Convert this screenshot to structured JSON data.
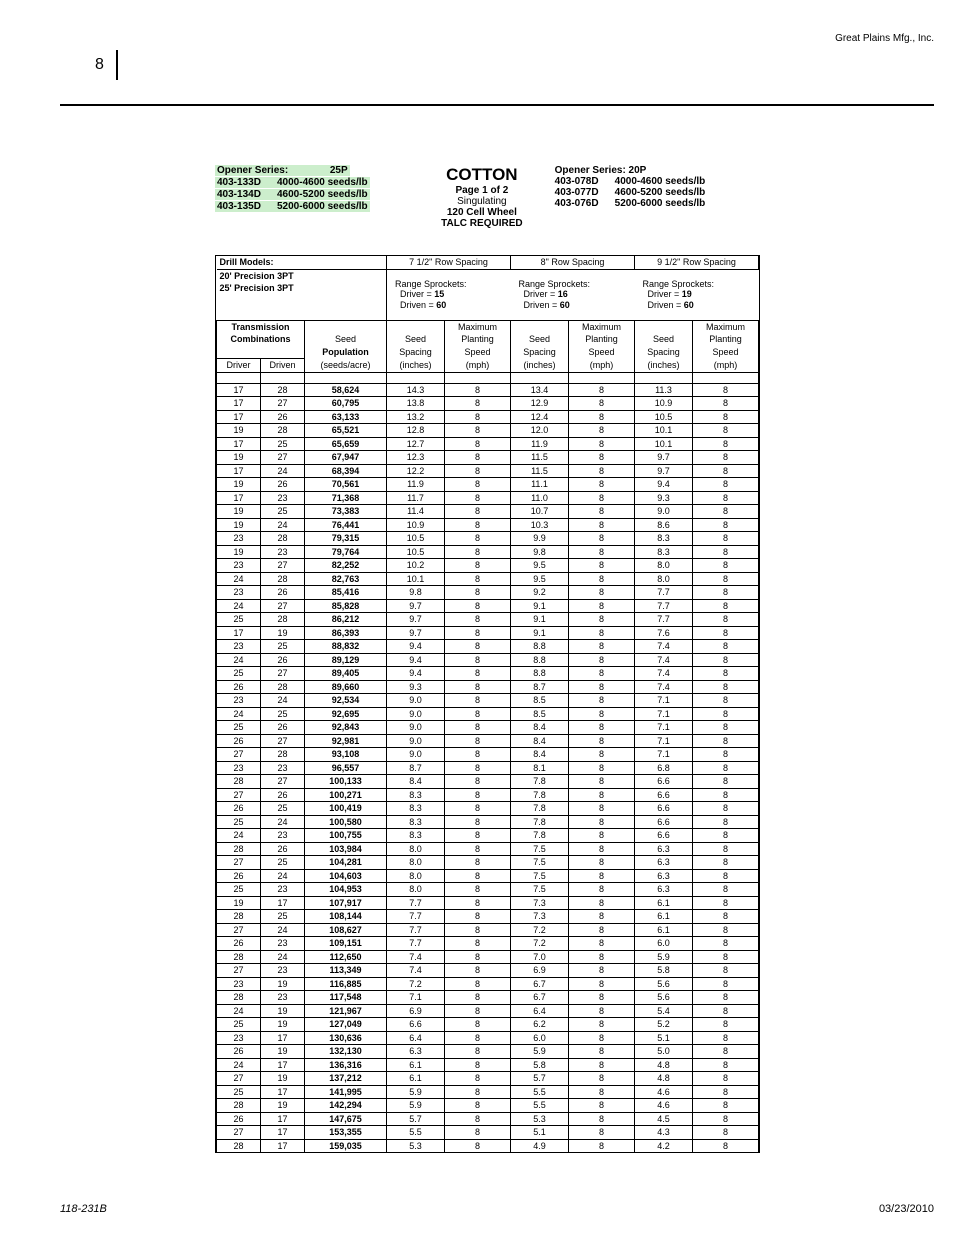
{
  "company": "Great Plains Mfg., Inc.",
  "page_num": "8",
  "footer_left": "118-231B",
  "footer_right": "03/23/2010",
  "header": {
    "left_title": "Opener Series:",
    "left_code": "25P",
    "left_rows": [
      {
        "code": "403-133D",
        "spec": "4000-4600 seeds/lb"
      },
      {
        "code": "403-134D",
        "spec": "4600-5200 seeds/lb"
      },
      {
        "code": "403-135D",
        "spec": "5200-6000 seeds/lb"
      }
    ],
    "center_title": "COTTON",
    "center_page": "Page 1 of 2",
    "center_l1": "Singulating",
    "center_l2": "120 Cell Wheel",
    "center_l3": "TALC REQUIRED",
    "right_title": "Opener Series:    20P",
    "right_rows": [
      {
        "code": "403-078D",
        "spec": "4000-4600 seeds/lb"
      },
      {
        "code": "403-077D",
        "spec": "4600-5200 seeds/lb"
      },
      {
        "code": "403-076D",
        "spec": "5200-6000 seeds/lb"
      }
    ]
  },
  "table": {
    "models_title": "Drill Models:",
    "models_l1": "20' Precision 3PT",
    "models_l2": "25' Precision 3PT",
    "spac1": "7 1/2\" Row Spacing",
    "spac2": "8\" Row Spacing",
    "spac3": "9 1/2\" Row Spacing",
    "sprock_lbl": "Range Sprockets:",
    "drv1": "Driver = 15",
    "drv2": "Driver = 16",
    "drv3": "Driver = 19",
    "drvn": "Driven = 60",
    "trans": "Transmission",
    "comb": "Combinations",
    "seed": "Seed",
    "pop": "Population",
    "spa": "(seeds/acre)",
    "ss": "Seed",
    "ss2": "Spacing",
    "ss3": "(inches)",
    "ms": "Maximum",
    "ms2": "Planting",
    "ms3": "Speed",
    "ms4": "(mph)",
    "driver": "Driver",
    "driven": "Driven",
    "rows": [
      [
        17,
        28,
        "58,624",
        "14.3",
        8,
        "13.4",
        8,
        "11.3",
        8
      ],
      [
        17,
        27,
        "60,795",
        "13.8",
        8,
        "12.9",
        8,
        "10.9",
        8
      ],
      [
        17,
        26,
        "63,133",
        "13.2",
        8,
        "12.4",
        8,
        "10.5",
        8
      ],
      [
        19,
        28,
        "65,521",
        "12.8",
        8,
        "12.0",
        8,
        "10.1",
        8
      ],
      [
        17,
        25,
        "65,659",
        "12.7",
        8,
        "11.9",
        8,
        "10.1",
        8
      ],
      [
        19,
        27,
        "67,947",
        "12.3",
        8,
        "11.5",
        8,
        "9.7",
        8
      ],
      [
        17,
        24,
        "68,394",
        "12.2",
        8,
        "11.5",
        8,
        "9.7",
        8
      ],
      [
        19,
        26,
        "70,561",
        "11.9",
        8,
        "11.1",
        8,
        "9.4",
        8
      ],
      [
        17,
        23,
        "71,368",
        "11.7",
        8,
        "11.0",
        8,
        "9.3",
        8
      ],
      [
        19,
        25,
        "73,383",
        "11.4",
        8,
        "10.7",
        8,
        "9.0",
        8
      ],
      [
        19,
        24,
        "76,441",
        "10.9",
        8,
        "10.3",
        8,
        "8.6",
        8
      ],
      [
        23,
        28,
        "79,315",
        "10.5",
        8,
        "9.9",
        8,
        "8.3",
        8
      ],
      [
        19,
        23,
        "79,764",
        "10.5",
        8,
        "9.8",
        8,
        "8.3",
        8
      ],
      [
        23,
        27,
        "82,252",
        "10.2",
        8,
        "9.5",
        8,
        "8.0",
        8
      ],
      [
        24,
        28,
        "82,763",
        "10.1",
        8,
        "9.5",
        8,
        "8.0",
        8
      ],
      [
        23,
        26,
        "85,416",
        "9.8",
        8,
        "9.2",
        8,
        "7.7",
        8
      ],
      [
        24,
        27,
        "85,828",
        "9.7",
        8,
        "9.1",
        8,
        "7.7",
        8
      ],
      [
        25,
        28,
        "86,212",
        "9.7",
        8,
        "9.1",
        8,
        "7.7",
        8
      ],
      [
        17,
        19,
        "86,393",
        "9.7",
        8,
        "9.1",
        8,
        "7.6",
        8
      ],
      [
        23,
        25,
        "88,832",
        "9.4",
        8,
        "8.8",
        8,
        "7.4",
        8
      ],
      [
        24,
        26,
        "89,129",
        "9.4",
        8,
        "8.8",
        8,
        "7.4",
        8
      ],
      [
        25,
        27,
        "89,405",
        "9.4",
        8,
        "8.8",
        8,
        "7.4",
        8
      ],
      [
        26,
        28,
        "89,660",
        "9.3",
        8,
        "8.7",
        8,
        "7.4",
        8
      ],
      [
        23,
        24,
        "92,534",
        "9.0",
        8,
        "8.5",
        8,
        "7.1",
        8
      ],
      [
        24,
        25,
        "92,695",
        "9.0",
        8,
        "8.5",
        8,
        "7.1",
        8
      ],
      [
        25,
        26,
        "92,843",
        "9.0",
        8,
        "8.4",
        8,
        "7.1",
        8
      ],
      [
        26,
        27,
        "92,981",
        "9.0",
        8,
        "8.4",
        8,
        "7.1",
        8
      ],
      [
        27,
        28,
        "93,108",
        "9.0",
        8,
        "8.4",
        8,
        "7.1",
        8
      ],
      [
        23,
        23,
        "96,557",
        "8.7",
        8,
        "8.1",
        8,
        "6.8",
        8
      ],
      [
        28,
        27,
        "100,133",
        "8.4",
        8,
        "7.8",
        8,
        "6.6",
        8
      ],
      [
        27,
        26,
        "100,271",
        "8.3",
        8,
        "7.8",
        8,
        "6.6",
        8
      ],
      [
        26,
        25,
        "100,419",
        "8.3",
        8,
        "7.8",
        8,
        "6.6",
        8
      ],
      [
        25,
        24,
        "100,580",
        "8.3",
        8,
        "7.8",
        8,
        "6.6",
        8
      ],
      [
        24,
        23,
        "100,755",
        "8.3",
        8,
        "7.8",
        8,
        "6.6",
        8
      ],
      [
        28,
        26,
        "103,984",
        "8.0",
        8,
        "7.5",
        8,
        "6.3",
        8
      ],
      [
        27,
        25,
        "104,281",
        "8.0",
        8,
        "7.5",
        8,
        "6.3",
        8
      ],
      [
        26,
        24,
        "104,603",
        "8.0",
        8,
        "7.5",
        8,
        "6.3",
        8
      ],
      [
        25,
        23,
        "104,953",
        "8.0",
        8,
        "7.5",
        8,
        "6.3",
        8
      ],
      [
        19,
        17,
        "107,917",
        "7.7",
        8,
        "7.3",
        8,
        "6.1",
        8
      ],
      [
        28,
        25,
        "108,144",
        "7.7",
        8,
        "7.3",
        8,
        "6.1",
        8
      ],
      [
        27,
        24,
        "108,627",
        "7.7",
        8,
        "7.2",
        8,
        "6.1",
        8
      ],
      [
        26,
        23,
        "109,151",
        "7.7",
        8,
        "7.2",
        8,
        "6.0",
        8
      ],
      [
        28,
        24,
        "112,650",
        "7.4",
        8,
        "7.0",
        8,
        "5.9",
        8
      ],
      [
        27,
        23,
        "113,349",
        "7.4",
        8,
        "6.9",
        8,
        "5.8",
        8
      ],
      [
        23,
        19,
        "116,885",
        "7.2",
        8,
        "6.7",
        8,
        "5.6",
        8
      ],
      [
        28,
        23,
        "117,548",
        "7.1",
        8,
        "6.7",
        8,
        "5.6",
        8
      ],
      [
        24,
        19,
        "121,967",
        "6.9",
        8,
        "6.4",
        8,
        "5.4",
        8
      ],
      [
        25,
        19,
        "127,049",
        "6.6",
        8,
        "6.2",
        8,
        "5.2",
        8
      ],
      [
        23,
        17,
        "130,636",
        "6.4",
        8,
        "6.0",
        8,
        "5.1",
        8
      ],
      [
        26,
        19,
        "132,130",
        "6.3",
        8,
        "5.9",
        8,
        "5.0",
        8
      ],
      [
        24,
        17,
        "136,316",
        "6.1",
        8,
        "5.8",
        8,
        "4.8",
        8
      ],
      [
        27,
        19,
        "137,212",
        "6.1",
        8,
        "5.7",
        8,
        "4.8",
        8
      ],
      [
        25,
        17,
        "141,995",
        "5.9",
        8,
        "5.5",
        8,
        "4.6",
        8
      ],
      [
        28,
        19,
        "142,294",
        "5.9",
        8,
        "5.5",
        8,
        "4.6",
        8
      ],
      [
        26,
        17,
        "147,675",
        "5.7",
        8,
        "5.3",
        8,
        "4.5",
        8
      ],
      [
        27,
        17,
        "153,355",
        "5.5",
        8,
        "5.1",
        8,
        "4.3",
        8
      ],
      [
        28,
        17,
        "159,035",
        "5.3",
        8,
        "4.9",
        8,
        "4.2",
        8
      ]
    ]
  }
}
